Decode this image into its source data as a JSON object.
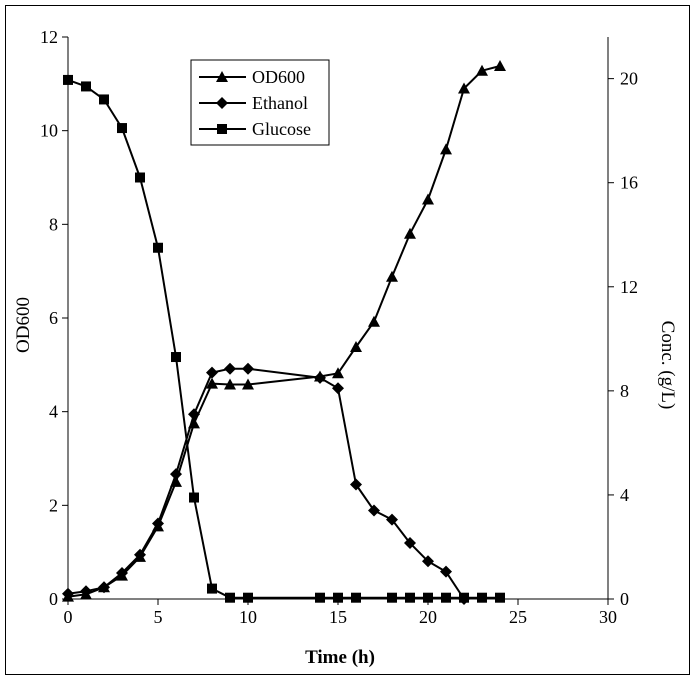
{
  "chart_data": {
    "type": "line",
    "xlabel": "Time (h)",
    "ylabel_left": "OD600",
    "ylabel_right": "Conc. (g/L)",
    "xlim": [
      0,
      30
    ],
    "ylim_left": [
      0,
      12
    ],
    "ylim_right": [
      0,
      21.6
    ],
    "xticks": [
      0,
      5,
      10,
      15,
      20,
      25,
      30
    ],
    "yticks_left": [
      0,
      2,
      4,
      6,
      8,
      10,
      12
    ],
    "yticks_right": [
      0,
      4,
      8,
      12,
      16,
      20
    ],
    "grid": false,
    "legend_position": "top-left",
    "series": [
      {
        "name": "OD600",
        "axis": "left",
        "marker": "triangle",
        "x": [
          0,
          1,
          2,
          3,
          4,
          5,
          6,
          7,
          8,
          9,
          10,
          14,
          15,
          16,
          17,
          18,
          19,
          20,
          21,
          22,
          23,
          24
        ],
        "y": [
          0.05,
          0.1,
          0.25,
          0.5,
          0.9,
          1.55,
          2.5,
          3.75,
          4.6,
          4.58,
          4.58,
          4.75,
          4.82,
          5.38,
          5.92,
          6.88,
          7.8,
          8.53,
          9.6,
          10.9,
          11.28,
          11.38
        ]
      },
      {
        "name": "Ethanol",
        "axis": "right",
        "marker": "diamond",
        "x": [
          0,
          1,
          2,
          3,
          4,
          5,
          6,
          7,
          8,
          9,
          10,
          14,
          15,
          16,
          17,
          18,
          19,
          20,
          21,
          22
        ],
        "y": [
          0.2,
          0.3,
          0.45,
          1.0,
          1.7,
          2.9,
          4.8,
          7.1,
          8.7,
          8.85,
          8.85,
          8.5,
          8.1,
          4.4,
          3.4,
          3.05,
          2.15,
          1.45,
          1.05,
          0.0
        ]
      },
      {
        "name": "Glucose",
        "axis": "right",
        "marker": "square",
        "x": [
          0,
          1,
          2,
          3,
          4,
          5,
          6,
          7,
          8,
          9,
          10,
          14,
          15,
          16,
          18,
          19,
          20,
          21,
          22,
          23,
          24
        ],
        "y": [
          19.95,
          19.7,
          19.2,
          18.1,
          16.2,
          13.5,
          9.3,
          3.9,
          0.4,
          0.05,
          0.05,
          0.05,
          0.05,
          0.05,
          0.05,
          0.05,
          0.05,
          0.05,
          0.05,
          0.05,
          0.05
        ]
      }
    ]
  }
}
